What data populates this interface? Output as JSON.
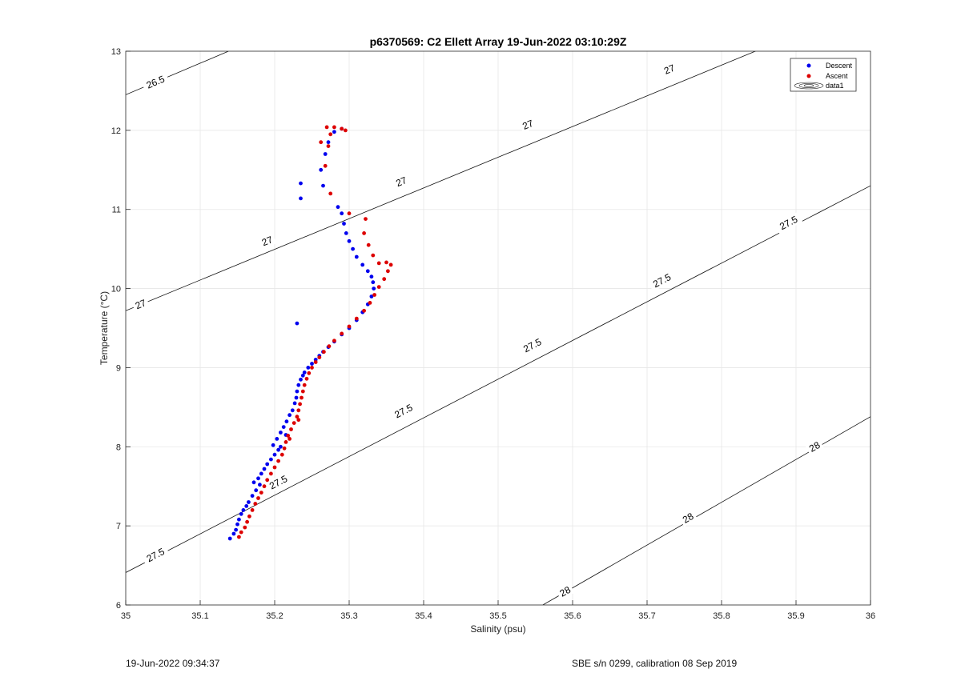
{
  "chart_data": {
    "type": "scatter",
    "title": "p6370569: C2 Ellett Array 19-Jun-2022 03:10:29Z",
    "xlabel": "Salinity (psu)",
    "ylabel": "Temperature (°C)",
    "xlim": [
      35,
      36
    ],
    "ylim": [
      6,
      13
    ],
    "xticks": [
      35,
      35.1,
      35.2,
      35.3,
      35.4,
      35.5,
      35.6,
      35.7,
      35.8,
      35.9,
      36
    ],
    "xtick_labels": [
      "35",
      "35.1",
      "35.2",
      "35.3",
      "35.4",
      "35.5",
      "35.6",
      "35.7",
      "35.8",
      "35.9",
      "36"
    ],
    "yticks": [
      6,
      7,
      8,
      9,
      10,
      11,
      12,
      13
    ],
    "ytick_labels": [
      "6",
      "7",
      "8",
      "9",
      "10",
      "11",
      "12",
      "13"
    ],
    "grid": true,
    "legend": {
      "position": "top-right",
      "entries": [
        {
          "label": "Descent",
          "marker": "dot",
          "color": "#0000ee"
        },
        {
          "label": "Ascent",
          "marker": "dot",
          "color": "#dd0000"
        },
        {
          "label": "data1",
          "marker": "contour"
        }
      ]
    },
    "series": [
      {
        "name": "Descent",
        "color": "#0000ee",
        "points": [
          [
            35.14,
            6.84
          ],
          [
            35.145,
            6.9
          ],
          [
            35.148,
            6.95
          ],
          [
            35.15,
            7.02
          ],
          [
            35.152,
            7.08
          ],
          [
            35.155,
            7.15
          ],
          [
            35.158,
            7.2
          ],
          [
            35.162,
            7.25
          ],
          [
            35.165,
            7.3
          ],
          [
            35.17,
            7.38
          ],
          [
            35.175,
            7.45
          ],
          [
            35.18,
            7.52
          ],
          [
            35.172,
            7.55
          ],
          [
            35.178,
            7.6
          ],
          [
            35.182,
            7.66
          ],
          [
            35.186,
            7.72
          ],
          [
            35.19,
            7.78
          ],
          [
            35.195,
            7.84
          ],
          [
            35.2,
            7.9
          ],
          [
            35.205,
            7.96
          ],
          [
            35.198,
            8.02
          ],
          [
            35.203,
            8.1
          ],
          [
            35.208,
            8.18
          ],
          [
            35.212,
            8.25
          ],
          [
            35.216,
            8.32
          ],
          [
            35.22,
            8.4
          ],
          [
            35.224,
            8.46
          ],
          [
            35.227,
            8.55
          ],
          [
            35.229,
            8.62
          ],
          [
            35.23,
            8.7
          ],
          [
            35.232,
            8.78
          ],
          [
            35.235,
            8.85
          ],
          [
            35.238,
            8.9
          ],
          [
            35.24,
            8.94
          ],
          [
            35.245,
            9.0
          ],
          [
            35.25,
            9.05
          ],
          [
            35.255,
            9.1
          ],
          [
            35.26,
            9.15
          ],
          [
            35.265,
            9.2
          ],
          [
            35.272,
            9.26
          ],
          [
            35.28,
            9.33
          ],
          [
            35.29,
            9.42
          ],
          [
            35.3,
            9.5
          ],
          [
            35.31,
            9.6
          ],
          [
            35.318,
            9.7
          ],
          [
            35.325,
            9.8
          ],
          [
            35.33,
            9.9
          ],
          [
            35.333,
            10.0
          ],
          [
            35.332,
            10.08
          ],
          [
            35.33,
            10.15
          ],
          [
            35.325,
            10.22
          ],
          [
            35.318,
            10.3
          ],
          [
            35.31,
            10.4
          ],
          [
            35.305,
            10.5
          ],
          [
            35.3,
            10.6
          ],
          [
            35.296,
            10.7
          ],
          [
            35.293,
            10.82
          ],
          [
            35.29,
            10.95
          ],
          [
            35.285,
            11.03
          ],
          [
            35.265,
            11.3
          ],
          [
            35.262,
            11.5
          ],
          [
            35.268,
            11.7
          ],
          [
            35.272,
            11.85
          ],
          [
            35.28,
            11.98
          ],
          [
            35.29,
            12.02
          ],
          [
            35.235,
            11.33
          ],
          [
            35.235,
            11.14
          ],
          [
            35.23,
            9.56
          ],
          [
            35.215,
            8.15
          ],
          [
            35.208,
            8.0
          ]
        ]
      },
      {
        "name": "Ascent",
        "color": "#dd0000",
        "points": [
          [
            35.152,
            6.86
          ],
          [
            35.155,
            6.92
          ],
          [
            35.16,
            6.98
          ],
          [
            35.163,
            7.05
          ],
          [
            35.166,
            7.12
          ],
          [
            35.17,
            7.2
          ],
          [
            35.174,
            7.28
          ],
          [
            35.178,
            7.35
          ],
          [
            35.182,
            7.42
          ],
          [
            35.186,
            7.5
          ],
          [
            35.19,
            7.58
          ],
          [
            35.195,
            7.66
          ],
          [
            35.2,
            7.74
          ],
          [
            35.205,
            7.82
          ],
          [
            35.21,
            7.9
          ],
          [
            35.213,
            7.98
          ],
          [
            35.215,
            8.06
          ],
          [
            35.218,
            8.14
          ],
          [
            35.222,
            8.22
          ],
          [
            35.226,
            8.3
          ],
          [
            35.23,
            8.38
          ],
          [
            35.232,
            8.46
          ],
          [
            35.234,
            8.54
          ],
          [
            35.236,
            8.62
          ],
          [
            35.238,
            8.7
          ],
          [
            35.24,
            8.78
          ],
          [
            35.243,
            8.86
          ],
          [
            35.246,
            8.93
          ],
          [
            35.25,
            9.0
          ],
          [
            35.255,
            9.07
          ],
          [
            35.26,
            9.13
          ],
          [
            35.266,
            9.2
          ],
          [
            35.273,
            9.27
          ],
          [
            35.28,
            9.34
          ],
          [
            35.29,
            9.43
          ],
          [
            35.3,
            9.52
          ],
          [
            35.31,
            9.62
          ],
          [
            35.32,
            9.72
          ],
          [
            35.328,
            9.82
          ],
          [
            35.334,
            9.92
          ],
          [
            35.34,
            10.02
          ],
          [
            35.347,
            10.12
          ],
          [
            35.352,
            10.22
          ],
          [
            35.356,
            10.3
          ],
          [
            35.35,
            10.33
          ],
          [
            35.34,
            10.32
          ],
          [
            35.332,
            10.42
          ],
          [
            35.326,
            10.55
          ],
          [
            35.32,
            10.7
          ],
          [
            35.322,
            10.88
          ],
          [
            35.3,
            10.95
          ],
          [
            35.275,
            11.2
          ],
          [
            35.268,
            11.55
          ],
          [
            35.272,
            11.8
          ],
          [
            35.275,
            11.95
          ],
          [
            35.27,
            12.04
          ],
          [
            35.28,
            12.04
          ],
          [
            35.29,
            12.02
          ],
          [
            35.295,
            12.0
          ],
          [
            35.262,
            11.85
          ],
          [
            35.232,
            8.34
          ],
          [
            35.22,
            8.1
          ]
        ]
      }
    ],
    "contours": [
      {
        "label": "26.5",
        "points": [
          [
            35,
            12.45
          ],
          [
            35.138,
            13
          ]
        ],
        "label_positions": [
          [
            35.04,
            12.61
          ]
        ]
      },
      {
        "label": "27",
        "points": [
          [
            35,
            9.72
          ],
          [
            36,
            13.6
          ]
        ],
        "label_positions": [
          [
            35.02,
            9.8
          ],
          [
            35.19,
            10.6
          ],
          [
            35.37,
            11.35
          ],
          [
            35.54,
            12.07
          ],
          [
            35.73,
            12.77
          ]
        ]
      },
      {
        "label": "27.5",
        "points": [
          [
            35,
            6.41
          ],
          [
            36,
            11.3
          ]
        ],
        "label_positions": [
          [
            35.04,
            6.63
          ],
          [
            35.205,
            7.55
          ],
          [
            35.373,
            8.45
          ],
          [
            35.546,
            9.28
          ],
          [
            35.72,
            10.1
          ],
          [
            35.89,
            10.83
          ]
        ]
      },
      {
        "label": "28",
        "points": [
          [
            35.56,
            6
          ],
          [
            36,
            8.38
          ]
        ],
        "label_positions": [
          [
            35.59,
            6.17
          ],
          [
            35.755,
            7.1
          ],
          [
            35.925,
            8.0
          ]
        ]
      }
    ]
  },
  "footer": {
    "timestamp": "19-Jun-2022 09:34:37",
    "calibration": "SBE s/n 0299, calibration 08 Sep 2019"
  }
}
